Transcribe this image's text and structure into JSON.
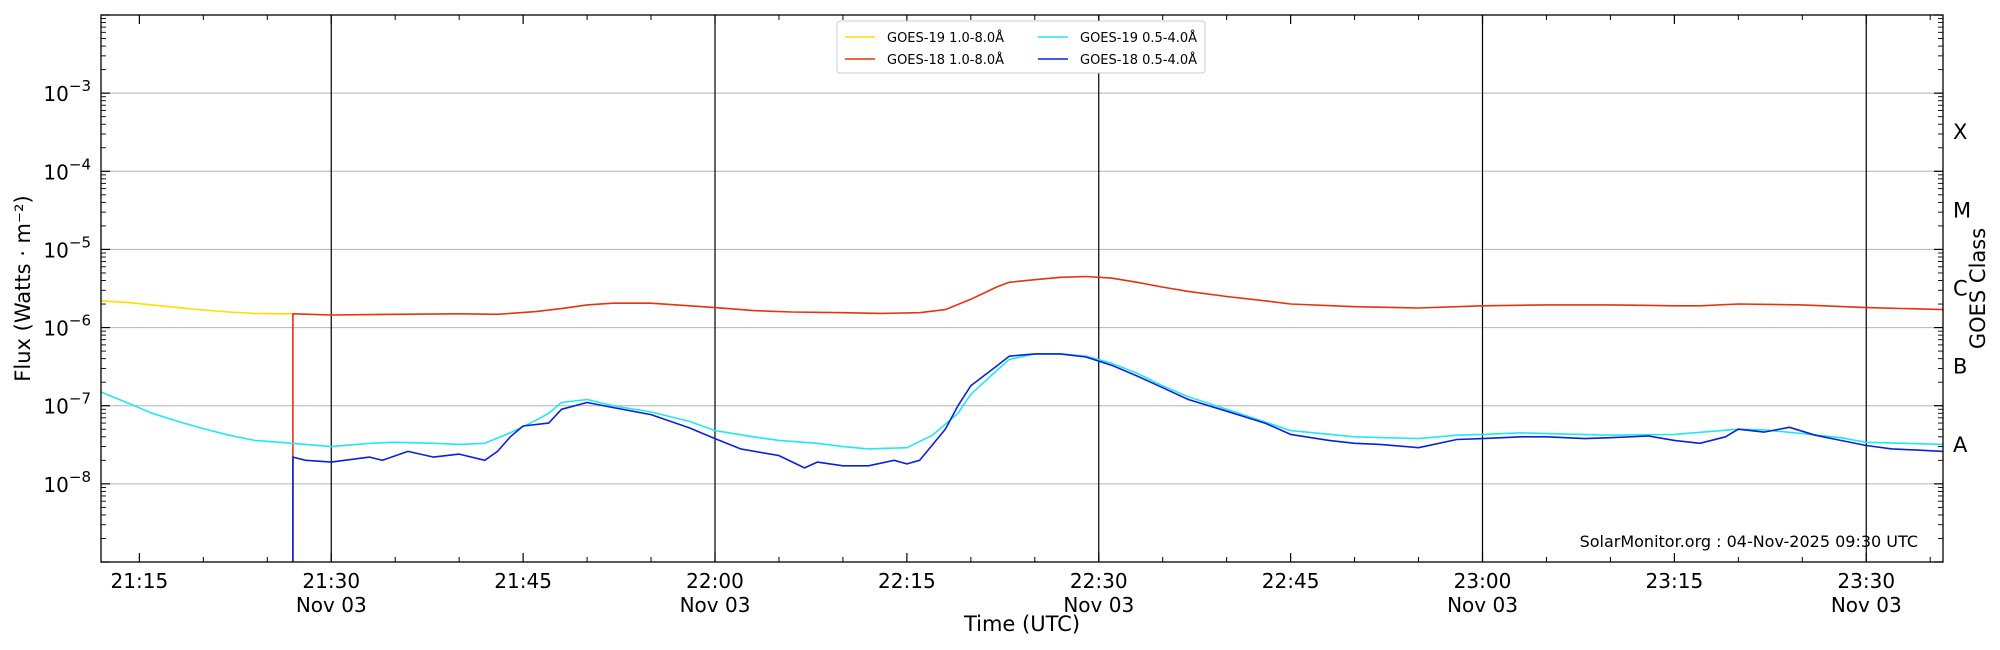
{
  "chart_data": {
    "type": "line",
    "xlabel": "Time (UTC)",
    "ylabel": "Flux (Watts · m⁻²)",
    "right_axis_label": "GOES Class",
    "y_scale": "log",
    "ylim": [
      1e-09,
      0.01
    ],
    "xlim": [
      "21:12",
      "23:36"
    ],
    "grid": "horizontal at each decade",
    "legend_position": "top-center",
    "credit": "SolarMonitor.org : 04-Nov-2025 09:30 UTC",
    "x_tick_labels": [
      {
        "time": "21:15",
        "label": "21:15",
        "sublabel": ""
      },
      {
        "time": "21:30",
        "label": "21:30",
        "sublabel": "Nov 03"
      },
      {
        "time": "21:45",
        "label": "21:45",
        "sublabel": ""
      },
      {
        "time": "22:00",
        "label": "22:00",
        "sublabel": "Nov 03"
      },
      {
        "time": "22:15",
        "label": "22:15",
        "sublabel": ""
      },
      {
        "time": "22:30",
        "label": "22:30",
        "sublabel": "Nov 03"
      },
      {
        "time": "22:45",
        "label": "22:45",
        "sublabel": ""
      },
      {
        "time": "23:00",
        "label": "23:00",
        "sublabel": "Nov 03"
      },
      {
        "time": "23:15",
        "label": "23:15",
        "sublabel": ""
      },
      {
        "time": "23:30",
        "label": "23:30",
        "sublabel": "Nov 03"
      }
    ],
    "vertical_lines": [
      "21:30",
      "22:00",
      "22:30",
      "23:00",
      "23:30"
    ],
    "y_tick_labels": [
      {
        "value": 1e-08,
        "base": "10",
        "exp": "−8"
      },
      {
        "value": 1e-07,
        "base": "10",
        "exp": "−7"
      },
      {
        "value": 1e-06,
        "base": "10",
        "exp": "−6"
      },
      {
        "value": 1e-05,
        "base": "10",
        "exp": "−5"
      },
      {
        "value": 0.0001,
        "base": "10",
        "exp": "−4"
      },
      {
        "value": 0.001,
        "base": "10",
        "exp": "−3"
      }
    ],
    "goes_classes": [
      {
        "label": "A",
        "value": 3.16e-08
      },
      {
        "label": "B",
        "value": 3.16e-07
      },
      {
        "label": "C",
        "value": 3.16e-06
      },
      {
        "label": "M",
        "value": 3.16e-05
      },
      {
        "label": "X",
        "value": 0.000316
      }
    ],
    "series": [
      {
        "name": "GOES-19 1.0-8.0Å",
        "color": "#ffdd00",
        "points": [
          [
            "21:12",
            2.2e-06
          ],
          [
            "21:14",
            2.1e-06
          ],
          [
            "21:16",
            1.95e-06
          ],
          [
            "21:18",
            1.8e-06
          ],
          [
            "21:20",
            1.68e-06
          ],
          [
            "21:22",
            1.58e-06
          ],
          [
            "21:24",
            1.52e-06
          ],
          [
            "21:26",
            1.5e-06
          ],
          [
            "21:27",
            1.5e-06
          ]
        ]
      },
      {
        "name": "GOES-18 1.0-8.0Å",
        "color": "#e8320a",
        "points": [
          [
            "21:27",
            1e-09
          ],
          [
            "21:27",
            1.5e-06
          ],
          [
            "21:30",
            1.45e-06
          ],
          [
            "21:35",
            1.48e-06
          ],
          [
            "21:40",
            1.5e-06
          ],
          [
            "21:43",
            1.48e-06
          ],
          [
            "21:46",
            1.6e-06
          ],
          [
            "21:48",
            1.75e-06
          ],
          [
            "21:50",
            1.95e-06
          ],
          [
            "21:52",
            2.05e-06
          ],
          [
            "21:55",
            2.05e-06
          ],
          [
            "21:58",
            1.9e-06
          ],
          [
            "22:00",
            1.8e-06
          ],
          [
            "22:03",
            1.65e-06
          ],
          [
            "22:06",
            1.58e-06
          ],
          [
            "22:10",
            1.55e-06
          ],
          [
            "22:13",
            1.52e-06
          ],
          [
            "22:16",
            1.55e-06
          ],
          [
            "22:18",
            1.7e-06
          ],
          [
            "22:20",
            2.3e-06
          ],
          [
            "22:22",
            3.3e-06
          ],
          [
            "22:23",
            3.8e-06
          ],
          [
            "22:25",
            4.1e-06
          ],
          [
            "22:27",
            4.4e-06
          ],
          [
            "22:29",
            4.5e-06
          ],
          [
            "22:31",
            4.3e-06
          ],
          [
            "22:33",
            3.8e-06
          ],
          [
            "22:35",
            3.3e-06
          ],
          [
            "22:37",
            2.9e-06
          ],
          [
            "22:40",
            2.5e-06
          ],
          [
            "22:43",
            2.2e-06
          ],
          [
            "22:45",
            2e-06
          ],
          [
            "22:50",
            1.85e-06
          ],
          [
            "22:55",
            1.78e-06
          ],
          [
            "22:58",
            1.85e-06
          ],
          [
            "23:00",
            1.9e-06
          ],
          [
            "23:05",
            1.95e-06
          ],
          [
            "23:10",
            1.95e-06
          ],
          [
            "23:15",
            1.9e-06
          ],
          [
            "23:17",
            1.9e-06
          ],
          [
            "23:20",
            2e-06
          ],
          [
            "23:25",
            1.95e-06
          ],
          [
            "23:30",
            1.8e-06
          ],
          [
            "23:36",
            1.7e-06
          ]
        ]
      },
      {
        "name": "GOES-19 0.5-4.0Å",
        "color": "#22e8ee",
        "points": [
          [
            "21:12",
            1.5e-07
          ],
          [
            "21:14",
            1.1e-07
          ],
          [
            "21:16",
            8e-08
          ],
          [
            "21:18",
            6.3e-08
          ],
          [
            "21:20",
            5.1e-08
          ],
          [
            "21:22",
            4.2e-08
          ],
          [
            "21:24",
            3.6e-08
          ],
          [
            "21:26",
            3.4e-08
          ],
          [
            "21:28",
            3.2e-08
          ],
          [
            "21:30",
            3e-08
          ],
          [
            "21:33",
            3.3e-08
          ],
          [
            "21:35",
            3.4e-08
          ],
          [
            "21:38",
            3.3e-08
          ],
          [
            "21:40",
            3.2e-08
          ],
          [
            "21:42",
            3.3e-08
          ],
          [
            "21:44",
            4.5e-08
          ],
          [
            "21:46",
            6.5e-08
          ],
          [
            "21:47",
            8e-08
          ],
          [
            "21:48",
            1.1e-07
          ],
          [
            "21:50",
            1.2e-07
          ],
          [
            "21:52",
            1e-07
          ],
          [
            "21:55",
            8.3e-08
          ],
          [
            "21:58",
            6.3e-08
          ],
          [
            "22:00",
            4.8e-08
          ],
          [
            "22:03",
            4e-08
          ],
          [
            "22:05",
            3.6e-08
          ],
          [
            "22:08",
            3.3e-08
          ],
          [
            "22:10",
            3e-08
          ],
          [
            "22:12",
            2.8e-08
          ],
          [
            "22:15",
            2.9e-08
          ],
          [
            "22:17",
            4.2e-08
          ],
          [
            "22:19",
            8e-08
          ],
          [
            "22:20",
            1.4e-07
          ],
          [
            "22:22",
            2.8e-07
          ],
          [
            "22:23",
            3.9e-07
          ],
          [
            "22:25",
            4.6e-07
          ],
          [
            "22:27",
            4.6e-07
          ],
          [
            "22:29",
            4.3e-07
          ],
          [
            "22:31",
            3.5e-07
          ],
          [
            "22:33",
            2.6e-07
          ],
          [
            "22:35",
            1.8e-07
          ],
          [
            "22:37",
            1.3e-07
          ],
          [
            "22:40",
            9e-08
          ],
          [
            "22:43",
            6.2e-08
          ],
          [
            "22:45",
            4.8e-08
          ],
          [
            "22:50",
            4e-08
          ],
          [
            "22:55",
            3.8e-08
          ],
          [
            "22:58",
            4.2e-08
          ],
          [
            "23:00",
            4.3e-08
          ],
          [
            "23:03",
            4.5e-08
          ],
          [
            "23:05",
            4.4e-08
          ],
          [
            "23:10",
            4.2e-08
          ],
          [
            "23:15",
            4.3e-08
          ],
          [
            "23:20",
            5e-08
          ],
          [
            "23:22",
            4.9e-08
          ],
          [
            "23:25",
            4.4e-08
          ],
          [
            "23:28",
            3.9e-08
          ],
          [
            "23:30",
            3.4e-08
          ],
          [
            "23:33",
            3.3e-08
          ],
          [
            "23:36",
            3.2e-08
          ]
        ]
      },
      {
        "name": "GOES-18 0.5-4.0Å",
        "color": "#0a22dd",
        "points": [
          [
            "21:27",
            1e-09
          ],
          [
            "21:27",
            2.2e-08
          ],
          [
            "21:28",
            2e-08
          ],
          [
            "21:30",
            1.9e-08
          ],
          [
            "21:33",
            2.2e-08
          ],
          [
            "21:34",
            2e-08
          ],
          [
            "21:36",
            2.6e-08
          ],
          [
            "21:38",
            2.2e-08
          ],
          [
            "21:40",
            2.4e-08
          ],
          [
            "21:42",
            2e-08
          ],
          [
            "21:43",
            2.6e-08
          ],
          [
            "21:44",
            4e-08
          ],
          [
            "21:45",
            5.5e-08
          ],
          [
            "21:47",
            6e-08
          ],
          [
            "21:48",
            9e-08
          ],
          [
            "21:50",
            1.1e-07
          ],
          [
            "21:52",
            9.5e-08
          ],
          [
            "21:55",
            7.7e-08
          ],
          [
            "21:58",
            5.2e-08
          ],
          [
            "22:00",
            3.8e-08
          ],
          [
            "22:02",
            2.8e-08
          ],
          [
            "22:05",
            2.3e-08
          ],
          [
            "22:07",
            1.6e-08
          ],
          [
            "22:08",
            1.9e-08
          ],
          [
            "22:10",
            1.7e-08
          ],
          [
            "22:12",
            1.7e-08
          ],
          [
            "22:14",
            2e-08
          ],
          [
            "22:15",
            1.8e-08
          ],
          [
            "22:16",
            2e-08
          ],
          [
            "22:18",
            5e-08
          ],
          [
            "22:19",
            1e-07
          ],
          [
            "22:20",
            1.8e-07
          ],
          [
            "22:22",
            3.2e-07
          ],
          [
            "22:23",
            4.3e-07
          ],
          [
            "22:25",
            4.6e-07
          ],
          [
            "22:27",
            4.6e-07
          ],
          [
            "22:29",
            4.2e-07
          ],
          [
            "22:31",
            3.3e-07
          ],
          [
            "22:33",
            2.4e-07
          ],
          [
            "22:35",
            1.7e-07
          ],
          [
            "22:37",
            1.2e-07
          ],
          [
            "22:40",
            8.5e-08
          ],
          [
            "22:43",
            6e-08
          ],
          [
            "22:45",
            4.3e-08
          ],
          [
            "22:48",
            3.6e-08
          ],
          [
            "22:50",
            3.3e-08
          ],
          [
            "22:52",
            3.2e-08
          ],
          [
            "22:55",
            2.9e-08
          ],
          [
            "22:58",
            3.7e-08
          ],
          [
            "23:00",
            3.8e-08
          ],
          [
            "23:03",
            4e-08
          ],
          [
            "23:05",
            4e-08
          ],
          [
            "23:08",
            3.8e-08
          ],
          [
            "23:10",
            3.9e-08
          ],
          [
            "23:13",
            4.1e-08
          ],
          [
            "23:15",
            3.6e-08
          ],
          [
            "23:17",
            3.3e-08
          ],
          [
            "23:19",
            4e-08
          ],
          [
            "23:20",
            5e-08
          ],
          [
            "23:22",
            4.6e-08
          ],
          [
            "23:24",
            5.3e-08
          ],
          [
            "23:26",
            4.2e-08
          ],
          [
            "23:28",
            3.6e-08
          ],
          [
            "23:30",
            3.1e-08
          ],
          [
            "23:32",
            2.8e-08
          ],
          [
            "23:34",
            2.7e-08
          ],
          [
            "23:36",
            2.6e-08
          ]
        ]
      }
    ]
  }
}
